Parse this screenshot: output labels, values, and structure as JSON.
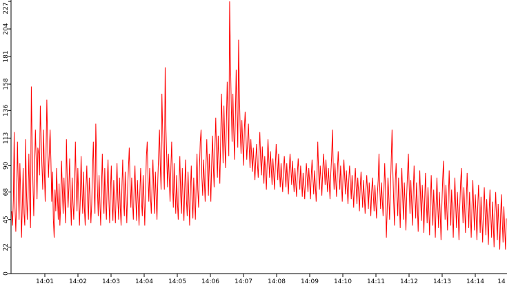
{
  "chart_data": {
    "type": "line",
    "title": "",
    "xlabel": "",
    "ylabel": "",
    "ylim": [
      0,
      227
    ],
    "y_ticks": [
      "0",
      "22",
      "45",
      "68",
      "90",
      "113",
      "136",
      "158",
      "181",
      "204",
      "227"
    ],
    "x_ticks": [
      "14:01",
      "14:02",
      "14:03",
      "14:04",
      "14:05",
      "14:06",
      "14:07",
      "14:08",
      "14:09",
      "14:10",
      "14:11",
      "14:12",
      "14:13",
      "14:14",
      "14"
    ],
    "grid": false,
    "legend": "none",
    "series": [
      {
        "name": "",
        "color": "#ff0000",
        "x_range": [
          "14:00:42",
          "14:15:05"
        ],
        "sampling": "approx. 2 samples per second (traced)",
        "values": [
          52,
          40,
          62,
          118,
          55,
          35,
          60,
          110,
          75,
          45,
          92,
          67,
          30,
          58,
          88,
          50,
          40,
          112,
          70,
          45,
          63,
          100,
          60,
          38,
          156,
          110,
          75,
          48,
          88,
          120,
          95,
          62,
          105,
          100,
          82,
          140,
          115,
          90,
          70,
          120,
          85,
          60,
          98,
          145,
          110,
          80,
          100,
          120,
          95,
          60,
          85,
          45,
          30,
          70,
          52,
          88,
          65,
          45,
          75,
          40,
          58,
          94,
          70,
          50,
          80,
          60,
          42,
          112,
          80,
          55,
          72,
          96,
          62,
          40,
          80,
          60,
          45,
          70,
          110,
          75,
          52,
          88,
          65,
          40,
          62,
          98,
          70,
          50,
          85,
          55,
          40,
          72,
          90,
          60,
          45,
          80,
          65,
          42,
          58,
          88,
          110,
          70,
          50,
          125,
          95,
          70,
          48,
          82,
          60,
          40,
          72,
          100,
          65,
          50,
          88,
          60,
          45,
          75,
          95,
          62,
          42,
          70,
          90,
          58,
          44,
          78,
          60,
          42,
          68,
          92,
          62,
          45,
          80,
          55,
          40,
          72,
          95,
          60,
          48,
          85,
          65,
          42,
          70,
          88,
          105,
          75,
          55,
          80,
          60,
          45,
          72,
          90,
          62,
          44,
          78,
          58,
          40,
          68,
          88,
          60,
          48,
          82,
          64,
          40,
          70,
          98,
          110,
          80,
          60,
          88,
          65,
          50,
          75,
          95,
          70,
          50,
          85,
          62,
          45,
          78,
          100,
          120,
          90,
          70,
          150,
          118,
          90,
          70,
          172,
          120,
          95,
          72,
          100,
          80,
          60,
          88,
          110,
          75,
          55,
          92,
          70,
          50,
          82,
          60,
          45,
          75,
          98,
          65,
          50,
          88,
          60,
          44,
          72,
          95,
          62,
          48,
          85,
          64,
          40,
          70,
          90,
          60,
          46,
          80,
          62,
          45,
          74,
          100,
          70,
          55,
          88,
          110,
          120,
          80,
          65,
          95,
          78,
          60,
          90,
          112,
          85,
          65,
          100,
          80,
          60,
          92,
          115,
          90,
          72,
          105,
          130,
          100,
          80,
          115,
          95,
          75,
          110,
          150,
          120,
          92,
          140,
          110,
          88,
          125,
          160,
          130,
          98,
          227,
          180,
          140,
          110,
          150,
          120,
          95,
          130,
          170,
          135,
          105,
          195,
          150,
          118,
          100,
          128,
          110,
          90,
          120,
          135,
          115,
          95,
          110,
          125,
          105,
          88,
          112,
          98,
          85,
          105,
          90,
          78,
          95,
          108,
          92,
          80,
          100,
          118,
          95,
          82,
          106,
          90,
          75,
          98,
          85,
          70,
          92,
          112,
          95,
          80,
          102,
          88,
          74,
          96,
          84,
          70,
          90,
          108,
          94,
          78,
          100,
          86,
          72,
          92,
          80,
          68,
          88,
          98,
          84,
          72,
          92,
          78,
          66,
          86,
          100,
          88,
          74,
          94,
          80,
          68,
          88,
          76,
          64,
          84,
          96,
          82,
          70,
          90,
          78,
          64,
          84,
          74,
          62,
          80,
          92,
          80,
          68,
          88,
          76,
          62,
          82,
          95,
          80,
          66,
          86,
          74,
          60,
          80,
          110,
          85,
          70,
          90,
          78,
          65,
          84,
          100,
          88,
          74,
          95,
          80,
          68,
          88,
          76,
          62,
          84,
          98,
          120,
          88,
          70,
          92,
          78,
          64,
          86,
          102,
          84,
          70,
          90,
          75,
          60,
          82,
          95,
          80,
          66,
          86,
          72,
          58,
          78,
          90,
          76,
          62,
          82,
          70,
          55,
          75,
          88,
          72,
          58,
          80,
          68,
          52,
          72,
          85,
          70,
          55,
          78,
          65,
          50,
          70,
          82,
          68,
          54,
          76,
          62,
          48,
          68,
          80,
          66,
          52,
          74,
          60,
          46,
          66,
          78,
          100,
          70,
          54,
          76,
          62,
          48,
          68,
          92,
          70,
          30,
          52,
          80,
          65,
          45,
          70,
          95,
          120,
          85,
          60,
          40,
          78,
          92,
          65,
          48,
          80,
          60,
          38,
          70,
          88,
          64,
          45,
          76,
          58,
          36,
          66,
          85,
          100,
          72,
          50,
          78,
          60,
          40,
          68,
          90,
          65,
          46,
          76,
          58,
          35,
          64,
          86,
          62,
          44,
          74,
          56,
          34,
          62,
          84,
          60,
          42,
          72,
          54,
          32,
          60,
          82,
          58,
          40,
          70,
          52,
          30,
          58,
          80,
          56,
          38,
          68,
          50,
          28,
          56,
          78,
          94,
          66,
          45,
          74,
          56,
          36,
          64,
          86,
          60,
          40,
          70,
          52,
          30,
          58,
          80,
          56,
          38,
          68,
          50,
          28,
          56,
          76,
          88,
          62,
          42,
          72,
          54,
          34,
          62,
          84,
          58,
          38,
          68,
          50,
          30,
          58,
          78,
          54,
          36,
          66,
          48,
          28,
          56,
          74,
          52,
          34,
          64,
          46,
          26,
          54,
          72,
          50,
          32,
          62,
          44,
          24,
          52,
          70,
          48,
          30,
          60,
          42,
          22,
          50,
          68,
          46,
          28,
          58,
          40,
          20,
          48,
          66,
          44,
          26,
          56,
          38,
          20,
          46
        ]
      }
    ]
  }
}
